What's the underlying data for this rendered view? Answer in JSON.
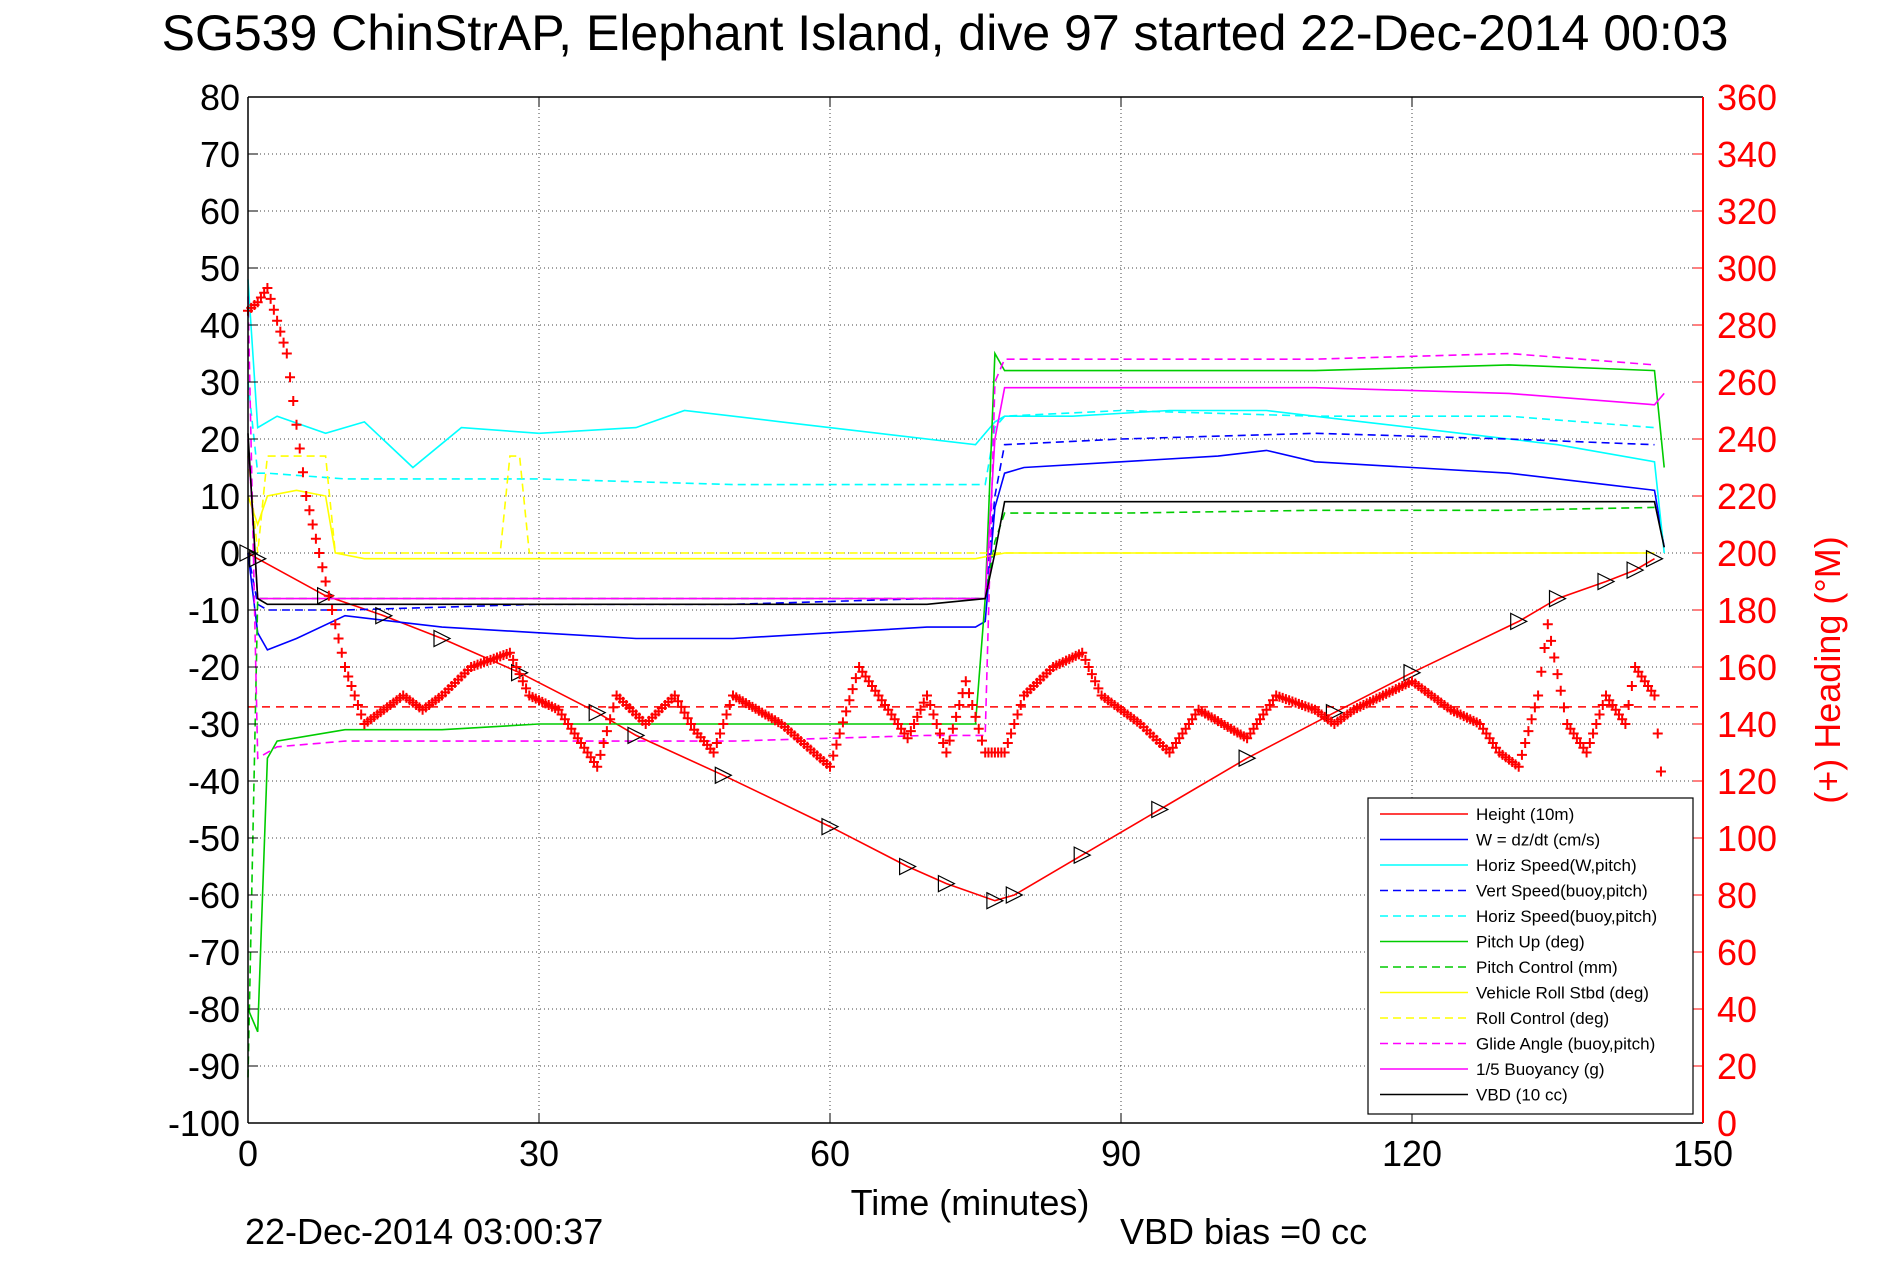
{
  "chart_data": {
    "type": "line",
    "title": "SG539 ChinStrAP, Elephant Island, dive 97 started 22-Dec-2014 00:03",
    "xlabel": "Time (minutes)",
    "ylabel": "",
    "y2label": "(+) Heading (°M)",
    "xlim": [
      0,
      150
    ],
    "ylim": [
      -100,
      80
    ],
    "y2lim": [
      0,
      360
    ],
    "xticks": [
      "0",
      "30",
      "60",
      "90",
      "120",
      "150"
    ],
    "yticks": [
      "80",
      "70",
      "60",
      "50",
      "40",
      "30",
      "20",
      "10",
      "0",
      "-10",
      "-20",
      "-30",
      "-40",
      "-50",
      "-60",
      "-70",
      "-80",
      "-90",
      "-100"
    ],
    "y2ticks": [
      "360",
      "340",
      "320",
      "300",
      "280",
      "260",
      "240",
      "220",
      "200",
      "180",
      "160",
      "140",
      "120",
      "100",
      "80",
      "60",
      "40",
      "20",
      "0"
    ],
    "grid": "dotted",
    "legend_position": "bottom-right",
    "footer_left": "22-Dec-2014 03:00:37",
    "footer_right": "VBD bias =0 cc",
    "series": [
      {
        "name": "Height (10m)",
        "color": "#ff0000",
        "style": "solid",
        "x": [
          0,
          1,
          8,
          14,
          20,
          28,
          36,
          40,
          49,
          60,
          68,
          72,
          77,
          79,
          86,
          94,
          103,
          112,
          120,
          131,
          135,
          140,
          143,
          145
        ],
        "y": [
          0,
          -1,
          -7.5,
          -11,
          -15,
          -21,
          -28,
          -32,
          -39,
          -48,
          -55,
          -58,
          -61,
          -60,
          -53,
          -45,
          -36,
          -28,
          -21,
          -12,
          -8,
          -5,
          -3,
          -1
        ]
      },
      {
        "name": "W = dz/dt (cm/s)",
        "color": "#0000ff",
        "style": "solid",
        "x": [
          0,
          1,
          2,
          5,
          10,
          15,
          20,
          30,
          40,
          50,
          60,
          70,
          75,
          76,
          77,
          78,
          80,
          90,
          100,
          105,
          110,
          120,
          130,
          140,
          145,
          146
        ],
        "y": [
          0,
          -14,
          -17,
          -15,
          -11,
          -12,
          -13,
          -14,
          -15,
          -15,
          -14,
          -13,
          -13,
          -12,
          8,
          14,
          15,
          16,
          17,
          18,
          16,
          15,
          14,
          12,
          11,
          1
        ]
      },
      {
        "name": "Horiz Speed(W,pitch)",
        "color": "#00ffff",
        "style": "solid",
        "x": [
          0,
          1,
          3,
          8,
          12,
          17,
          22,
          30,
          40,
          45,
          55,
          65,
          75,
          77,
          78,
          85,
          95,
          105,
          115,
          125,
          135,
          145,
          146
        ],
        "y": [
          48,
          22,
          24,
          21,
          23,
          15,
          22,
          21,
          22,
          25,
          23,
          21,
          19,
          23,
          24,
          24,
          25,
          25,
          23,
          21,
          19,
          16,
          0
        ]
      },
      {
        "name": "Vert Speed(buoy,pitch)",
        "color": "#0000ff",
        "style": "dashed",
        "x": [
          0,
          1,
          2,
          10,
          30,
          50,
          70,
          76,
          77,
          78,
          90,
          110,
          130,
          145
        ],
        "y": [
          0,
          -9,
          -10,
          -10,
          -9,
          -9,
          -8,
          -8,
          10,
          19,
          20,
          21,
          20,
          19
        ]
      },
      {
        "name": "Horiz Speed(buoy,pitch)",
        "color": "#00ffff",
        "style": "dashed",
        "x": [
          0,
          1,
          2,
          10,
          30,
          50,
          70,
          76,
          77,
          78,
          90,
          110,
          130,
          145
        ],
        "y": [
          30,
          14,
          14,
          13,
          13,
          12,
          12,
          12,
          22,
          24,
          25,
          24,
          24,
          22
        ]
      },
      {
        "name": "Pitch Up (deg)",
        "color": "#00cc00",
        "style": "solid",
        "x": [
          0,
          1,
          2,
          3,
          10,
          20,
          30,
          40,
          50,
          60,
          70,
          75,
          76,
          77,
          78,
          90,
          110,
          130,
          145,
          146
        ],
        "y": [
          -80,
          -84,
          -36,
          -33,
          -31,
          -31,
          -30,
          -30,
          -30,
          -30,
          -30,
          -30,
          -8,
          35,
          32,
          32,
          32,
          33,
          32,
          15
        ]
      },
      {
        "name": "Pitch Control (mm)",
        "color": "#00cc00",
        "style": "dashed",
        "x": [
          0,
          1,
          2,
          10,
          30,
          50,
          70,
          76,
          77,
          78,
          90,
          110,
          130,
          145
        ],
        "y": [
          -92,
          -8,
          -8,
          -8,
          -8,
          -8,
          -8,
          -8,
          2,
          7,
          7,
          7.5,
          7.5,
          8
        ]
      },
      {
        "name": "Vehicle Roll Stbd (deg)",
        "color": "#ffff00",
        "style": "solid",
        "x": [
          0,
          1,
          2,
          5,
          8,
          9,
          12,
          20,
          30,
          40,
          60,
          75,
          78,
          90,
          110,
          130,
          145
        ],
        "y": [
          10,
          5,
          10,
          11,
          10,
          0,
          -1,
          -1,
          -1,
          -1,
          -1,
          -1,
          0,
          0,
          0,
          0,
          0
        ]
      },
      {
        "name": "Roll Control (deg)",
        "color": "#ffff00",
        "style": "dashed",
        "x": [
          0,
          1,
          2,
          8,
          9,
          26,
          27,
          28,
          29,
          30,
          60,
          75,
          78,
          90,
          145
        ],
        "y": [
          17,
          0,
          17,
          17,
          0,
          0,
          17,
          17,
          0,
          0,
          0,
          0,
          0,
          0,
          0
        ]
      },
      {
        "name": "Glide Angle (buoy,pitch)",
        "color": "#ff00ff",
        "style": "dashed",
        "x": [
          0,
          1,
          3,
          10,
          30,
          50,
          70,
          76,
          77,
          78,
          90,
          110,
          130,
          145
        ],
        "y": [
          45,
          -36,
          -34,
          -33,
          -33,
          -33,
          -32,
          -32,
          30,
          34,
          34,
          34,
          35,
          33
        ]
      },
      {
        "name": "1/5 Buoyancy (g)",
        "color": "#ff00ff",
        "style": "solid",
        "x": [
          0,
          1,
          2,
          10,
          30,
          50,
          70,
          76,
          77,
          78,
          90,
          110,
          130,
          145,
          146
        ],
        "y": [
          20,
          -8,
          -8,
          -8,
          -8,
          -8,
          -8,
          -8,
          20,
          29,
          29,
          29,
          28,
          26,
          28
        ]
      },
      {
        "name": "VBD (10 cc)",
        "color": "#000000",
        "style": "solid",
        "x": [
          0,
          1,
          2,
          10,
          30,
          50,
          70,
          76,
          77,
          78,
          90,
          110,
          130,
          145,
          146
        ],
        "y": [
          21,
          -8,
          -9,
          -9,
          -9,
          -9,
          -9,
          -8,
          0,
          9,
          9,
          9,
          9,
          9,
          1
        ]
      }
    ],
    "heading": {
      "name": "(+) Heading",
      "color": "#ff0000",
      "marker": "+",
      "x": [
        0,
        1,
        2,
        4,
        6,
        8,
        10,
        12,
        14,
        16,
        18,
        20,
        23,
        27,
        29,
        32,
        36,
        38,
        41,
        44,
        46,
        48,
        50,
        55,
        60,
        63,
        66,
        68,
        70,
        72,
        74,
        76,
        78,
        80,
        83,
        86,
        88,
        92,
        95,
        98,
        103,
        106,
        110,
        112,
        114,
        117,
        120,
        122,
        124,
        127,
        129,
        131,
        133,
        134,
        136,
        138,
        140,
        142,
        143,
        145,
        146
      ],
      "y": [
        285,
        288,
        293,
        270,
        220,
        190,
        160,
        140,
        145,
        150,
        145,
        150,
        160,
        165,
        150,
        145,
        125,
        150,
        140,
        150,
        138,
        130,
        150,
        140,
        125,
        160,
        145,
        135,
        150,
        130,
        155,
        130,
        130,
        150,
        160,
        165,
        150,
        140,
        130,
        145,
        135,
        150,
        145,
        140,
        145,
        150,
        155,
        150,
        145,
        140,
        130,
        125,
        150,
        175,
        140,
        130,
        150,
        140,
        160,
        150,
        110
      ]
    },
    "heading_reference": {
      "color": "#ff0000",
      "style": "dashed",
      "y2": 146
    }
  }
}
